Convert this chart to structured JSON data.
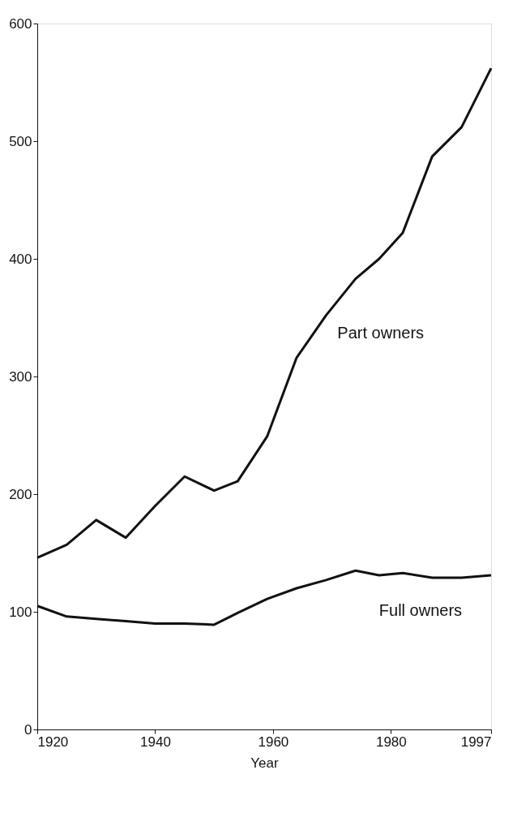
{
  "chart_data": {
    "type": "line",
    "xlabel": "Year",
    "x": [
      1920,
      1925,
      1930,
      1935,
      1940,
      1945,
      1950,
      1954,
      1959,
      1964,
      1969,
      1974,
      1978,
      1982,
      1987,
      1992,
      1997
    ],
    "series": [
      {
        "name": "Part owners",
        "color": "#111111",
        "values": [
          146,
          157,
          178,
          163,
          190,
          215,
          203,
          211,
          249,
          316,
          352,
          383,
          400,
          422,
          487,
          512,
          562
        ]
      },
      {
        "name": "Full owners",
        "color": "#111111",
        "values": [
          105,
          96,
          94,
          92,
          90,
          90,
          89,
          99,
          111,
          120,
          127,
          135,
          131,
          133,
          129,
          129,
          131
        ]
      }
    ],
    "xlim": [
      1920,
      1997
    ],
    "xticks": [
      1920,
      1940,
      1960,
      1980,
      1997
    ],
    "ylim": [
      0,
      600
    ],
    "yticks": [
      0,
      100,
      200,
      300,
      400,
      500,
      600
    ],
    "grid": false,
    "legend": false,
    "marker": "none",
    "line_style": "solid"
  }
}
